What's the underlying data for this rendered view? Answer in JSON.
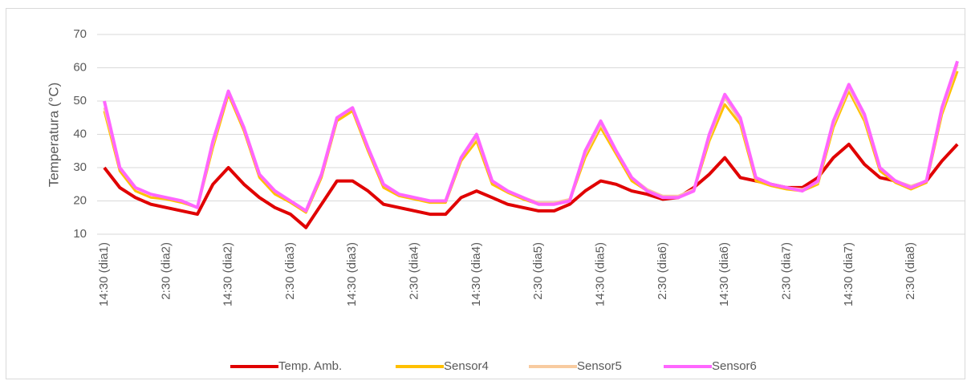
{
  "chart_data": {
    "type": "line",
    "y_label": "Temperatura (°C)",
    "categories": [
      "14:30 (dia1)",
      null,
      null,
      null,
      "2:30 (dia2)",
      null,
      null,
      null,
      "14:30 (dia2)",
      null,
      null,
      null,
      "2:30 (dia3)",
      null,
      null,
      null,
      "14:30 (dia3)",
      null,
      null,
      null,
      "2:30 (dia4)",
      null,
      null,
      null,
      "14:30 (dia4)",
      null,
      null,
      null,
      "2:30 (dia5)",
      null,
      null,
      null,
      "14:30 (dia5)",
      null,
      null,
      null,
      "2:30 (dia6)",
      null,
      null,
      null,
      "14:30 (dia6)",
      null,
      null,
      null,
      "2:30 (dia7)",
      null,
      null,
      null,
      "14:30 (dia7)",
      null,
      null,
      null,
      "2:30 (dia8)",
      null,
      null,
      null
    ],
    "ylim": [
      10,
      70
    ],
    "yticks": [
      10,
      20,
      30,
      40,
      50,
      60,
      70
    ],
    "grid": true,
    "legend": "bottom",
    "series": [
      {
        "name": "Temp. Amb.",
        "color": "#e00000",
        "width": 4,
        "values": [
          30,
          24,
          21,
          19,
          18,
          17,
          16,
          25,
          30,
          25,
          21,
          18,
          16,
          12,
          19,
          26,
          26,
          23,
          19,
          18,
          17,
          16,
          16,
          21,
          23,
          21,
          19,
          18,
          17,
          17,
          19,
          23,
          26,
          25,
          23,
          22,
          20.5,
          21,
          24,
          28,
          33,
          27,
          26,
          25,
          24,
          24,
          27,
          33,
          37,
          31,
          27,
          26,
          24,
          26,
          32,
          37
        ]
      },
      {
        "name": "Sensor4",
        "color": "#ffc000",
        "width": 3,
        "values": [
          47,
          29,
          23,
          21,
          20.5,
          19.5,
          18,
          36,
          52,
          41,
          27,
          22,
          19.5,
          16.5,
          27,
          44,
          47,
          35,
          24,
          21.5,
          20.5,
          19.5,
          19.5,
          32,
          38,
          25,
          22.5,
          20.5,
          19,
          19,
          20,
          33,
          42,
          34,
          26,
          23,
          21,
          21,
          23,
          38,
          49,
          43,
          26,
          24.5,
          23.5,
          23,
          25,
          42,
          53,
          44,
          29,
          25.5,
          23.5,
          25.5,
          46,
          59
        ]
      },
      {
        "name": "Sensor5",
        "color": "#f8cba0",
        "width": 3,
        "values": [
          48,
          30,
          24,
          22,
          21,
          20,
          18,
          37,
          53,
          42,
          28,
          23,
          20,
          17,
          28,
          45,
          48,
          36,
          25,
          22,
          21,
          20,
          20,
          33,
          39,
          26,
          23,
          21,
          19.5,
          19.5,
          20.5,
          34,
          43,
          35,
          27,
          23.5,
          21.5,
          21.5,
          23.5,
          39,
          51,
          44,
          27,
          25,
          24,
          23.5,
          25.5,
          43,
          54,
          45,
          30,
          26,
          24.5,
          26,
          47,
          61
        ]
      },
      {
        "name": "Sensor6",
        "color": "#ff66ff",
        "width": 4,
        "values": [
          50,
          30,
          24,
          22,
          21,
          20,
          18,
          38,
          53,
          42,
          28,
          23,
          20,
          17,
          28,
          45,
          48,
          36,
          25,
          22,
          21,
          20,
          20,
          33,
          40,
          26,
          23,
          21,
          19,
          19,
          20,
          35,
          44,
          35,
          27,
          23,
          21,
          21,
          23,
          40,
          52,
          45,
          27,
          25,
          24,
          23,
          26,
          44,
          55,
          46,
          30,
          26,
          24,
          26,
          48,
          62
        ]
      }
    ]
  }
}
